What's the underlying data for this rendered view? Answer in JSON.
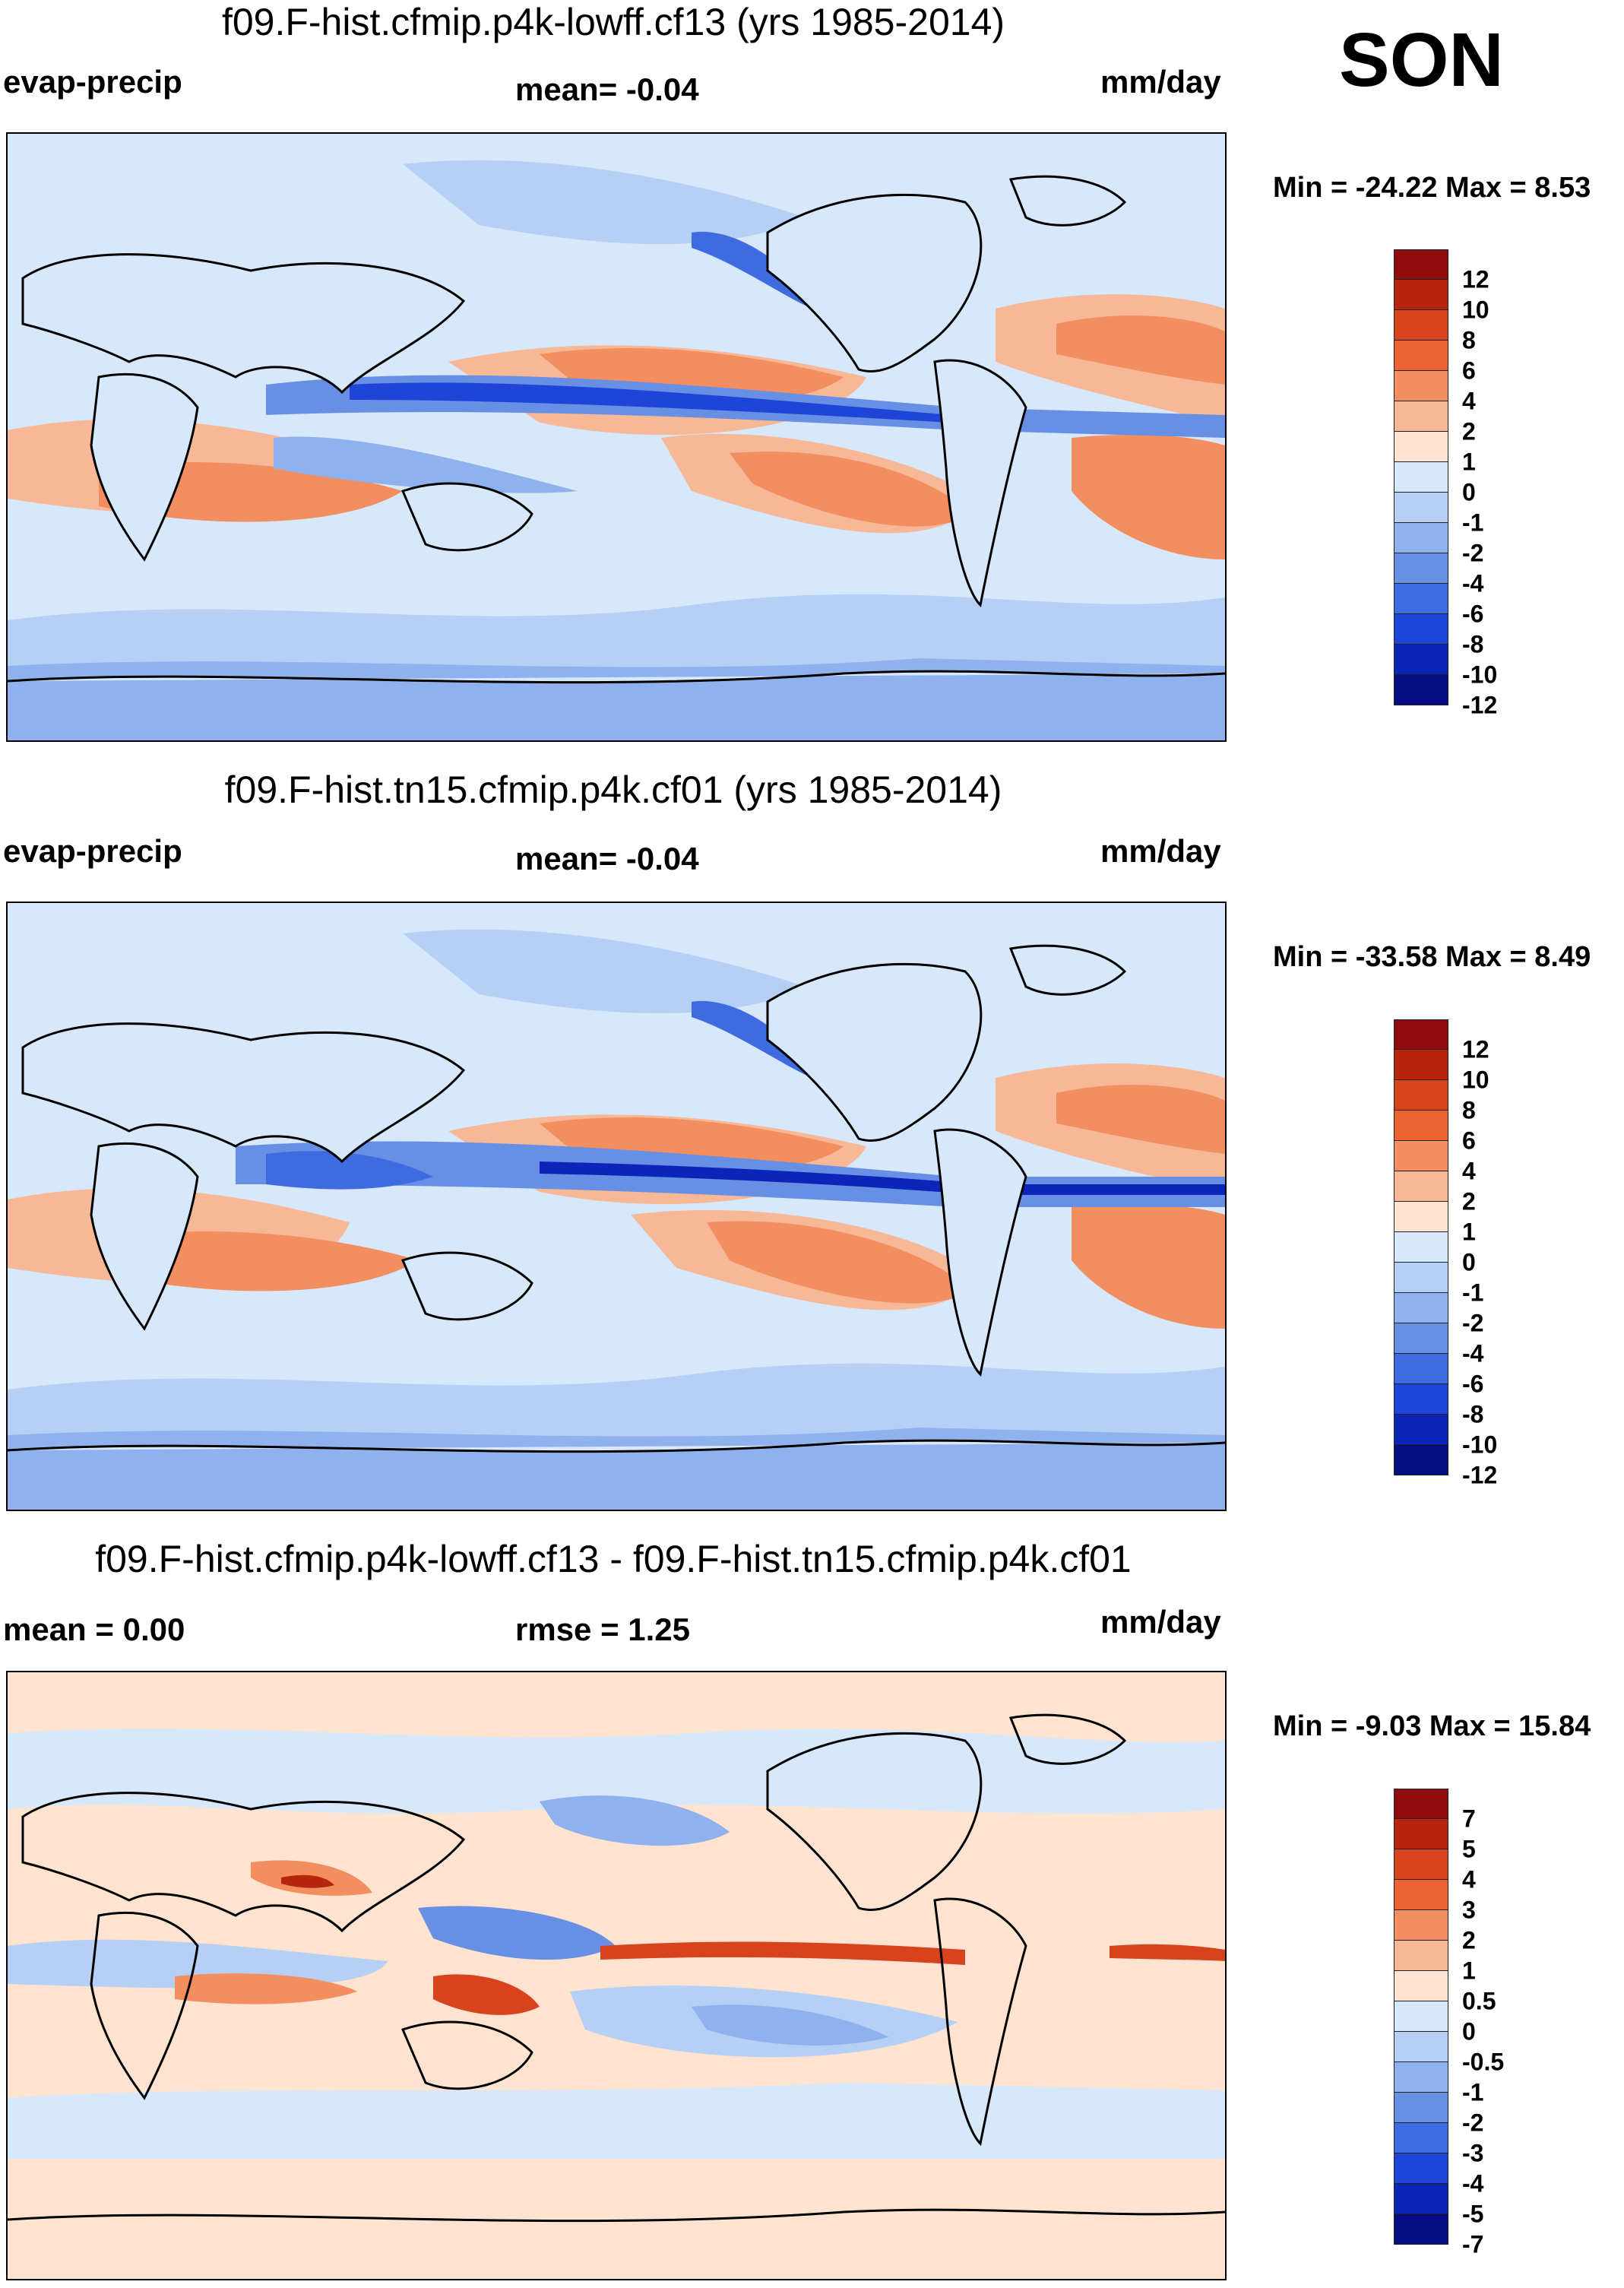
{
  "season": "SON",
  "units": "mm/day",
  "panels": [
    {
      "title": "f09.F-hist.cfmip.p4k-lowff.cf13 (yrs 1985-2014)",
      "left_label": "evap-precip",
      "center_label": "mean=  -0.04",
      "right_label": "mm/day",
      "minmax": "Min = -24.22 Max =   8.53",
      "colors": [
        "#8f0d0d",
        "#b8250e",
        "#d8421c",
        "#ec6332",
        "#f28e60",
        "#f7b898",
        "#fde3d0",
        "#d8e8fb",
        "#b6cff5",
        "#8fb2ee",
        "#678fe4",
        "#3f6be0",
        "#1f45d8",
        "#0c25b8",
        "#040e80"
      ],
      "levels": [
        "12",
        "10",
        "8",
        "6",
        "4",
        "2",
        "1",
        "0",
        "-1",
        "-2",
        "-4",
        "-6",
        "-8",
        "-10",
        "-12"
      ]
    },
    {
      "title": "f09.F-hist.tn15.cfmip.p4k.cf01 (yrs 1985-2014)",
      "left_label": "evap-precip",
      "center_label": "mean=  -0.04",
      "right_label": "mm/day",
      "minmax": "Min = -33.58 Max =   8.49",
      "colors": [
        "#8f0d0d",
        "#b8250e",
        "#d8421c",
        "#ec6332",
        "#f28e60",
        "#f7b898",
        "#fde3d0",
        "#d8e8fb",
        "#b6cff5",
        "#8fb2ee",
        "#678fe4",
        "#3f6be0",
        "#1f45d8",
        "#0c25b8",
        "#040e80"
      ],
      "levels": [
        "12",
        "10",
        "8",
        "6",
        "4",
        "2",
        "1",
        "0",
        "-1",
        "-2",
        "-4",
        "-6",
        "-8",
        "-10",
        "-12"
      ]
    },
    {
      "title": "f09.F-hist.cfmip.p4k-lowff.cf13 - f09.F-hist.tn15.cfmip.p4k.cf01",
      "left_label": "mean =   0.00",
      "center_label": "rmse =   1.25",
      "right_label": "mm/day",
      "minmax": "Min =  -9.03 Max =  15.84",
      "colors": [
        "#8f0d0d",
        "#b8250e",
        "#d8421c",
        "#ec6332",
        "#f28e60",
        "#f7b898",
        "#fde3d0",
        "#d8e8fb",
        "#b6cff5",
        "#8fb2ee",
        "#678fe4",
        "#3f6be0",
        "#1f45d8",
        "#0c25b8",
        "#040e80"
      ],
      "levels": [
        "7",
        "5",
        "4",
        "3",
        "2",
        "1",
        "0.5",
        "0",
        "-0.5",
        "-1",
        "-2",
        "-3",
        "-4",
        "-5",
        "-7"
      ]
    }
  ]
}
